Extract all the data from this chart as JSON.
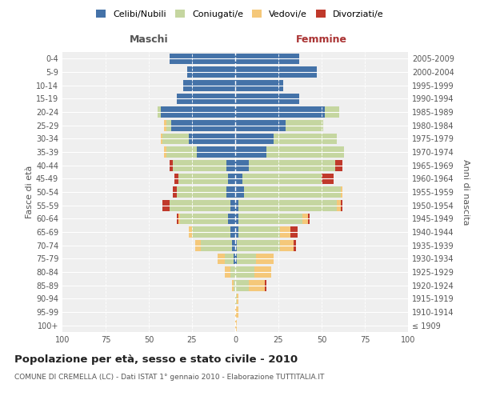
{
  "age_groups": [
    "100+",
    "95-99",
    "90-94",
    "85-89",
    "80-84",
    "75-79",
    "70-74",
    "65-69",
    "60-64",
    "55-59",
    "50-54",
    "45-49",
    "40-44",
    "35-39",
    "30-34",
    "25-29",
    "20-24",
    "15-19",
    "10-14",
    "5-9",
    "0-4"
  ],
  "birth_years": [
    "≤ 1909",
    "1910-1914",
    "1915-1919",
    "1920-1924",
    "1925-1929",
    "1930-1934",
    "1935-1939",
    "1940-1944",
    "1945-1949",
    "1950-1954",
    "1955-1959",
    "1960-1964",
    "1965-1969",
    "1970-1974",
    "1975-1979",
    "1980-1984",
    "1985-1989",
    "1990-1994",
    "1995-1999",
    "2000-2004",
    "2005-2009"
  ],
  "colors": {
    "celibi": "#4472a8",
    "coniugati": "#c5d6a0",
    "vedovi": "#f5c87a",
    "divorziati": "#c0392b"
  },
  "maschi": {
    "celibi": [
      0,
      0,
      0,
      0,
      0,
      1,
      2,
      3,
      4,
      3,
      5,
      4,
      5,
      22,
      27,
      37,
      43,
      34,
      30,
      28,
      38
    ],
    "coniugati": [
      0,
      0,
      0,
      1,
      3,
      5,
      18,
      22,
      28,
      35,
      29,
      29,
      31,
      18,
      15,
      3,
      2,
      0,
      0,
      0,
      0
    ],
    "vedovi": [
      0,
      0,
      0,
      1,
      3,
      4,
      3,
      2,
      1,
      0,
      0,
      0,
      0,
      1,
      1,
      1,
      0,
      0,
      0,
      0,
      0
    ],
    "divorziati": [
      0,
      0,
      0,
      0,
      0,
      0,
      0,
      0,
      1,
      4,
      2,
      2,
      2,
      0,
      0,
      0,
      0,
      0,
      0,
      0,
      0
    ]
  },
  "femmine": {
    "celibi": [
      0,
      0,
      0,
      0,
      0,
      1,
      1,
      2,
      2,
      2,
      5,
      4,
      8,
      18,
      22,
      29,
      52,
      37,
      28,
      47,
      37
    ],
    "coniugati": [
      0,
      0,
      1,
      8,
      11,
      11,
      25,
      24,
      37,
      57,
      56,
      46,
      50,
      45,
      37,
      22,
      8,
      0,
      0,
      0,
      0
    ],
    "vedovi": [
      1,
      2,
      1,
      9,
      10,
      10,
      8,
      6,
      3,
      2,
      1,
      0,
      0,
      0,
      0,
      0,
      0,
      0,
      0,
      0,
      0
    ],
    "divorziati": [
      0,
      0,
      0,
      1,
      0,
      0,
      1,
      4,
      1,
      1,
      0,
      7,
      4,
      0,
      0,
      0,
      0,
      0,
      0,
      0,
      0
    ]
  },
  "title": "Popolazione per età, sesso e stato civile - 2010",
  "subtitle": "COMUNE DI CREMELLA (LC) - Dati ISTAT 1° gennaio 2010 - Elaborazione TUTTITALIA.IT",
  "xlabel_maschi": "Maschi",
  "xlabel_femmine": "Femmine",
  "ylabel_left": "Fasce di età",
  "ylabel_right": "Anni di nascita",
  "xlim": 100,
  "legend_labels": [
    "Celibi/Nubili",
    "Coniugati/e",
    "Vedovi/e",
    "Divorziati/e"
  ],
  "background_color": "#efefef",
  "fig_background": "#ffffff",
  "maschi_color": "#555555",
  "femmine_color": "#aa3333",
  "text_color": "#555555",
  "title_color": "#222222",
  "subtitle_color": "#555555"
}
